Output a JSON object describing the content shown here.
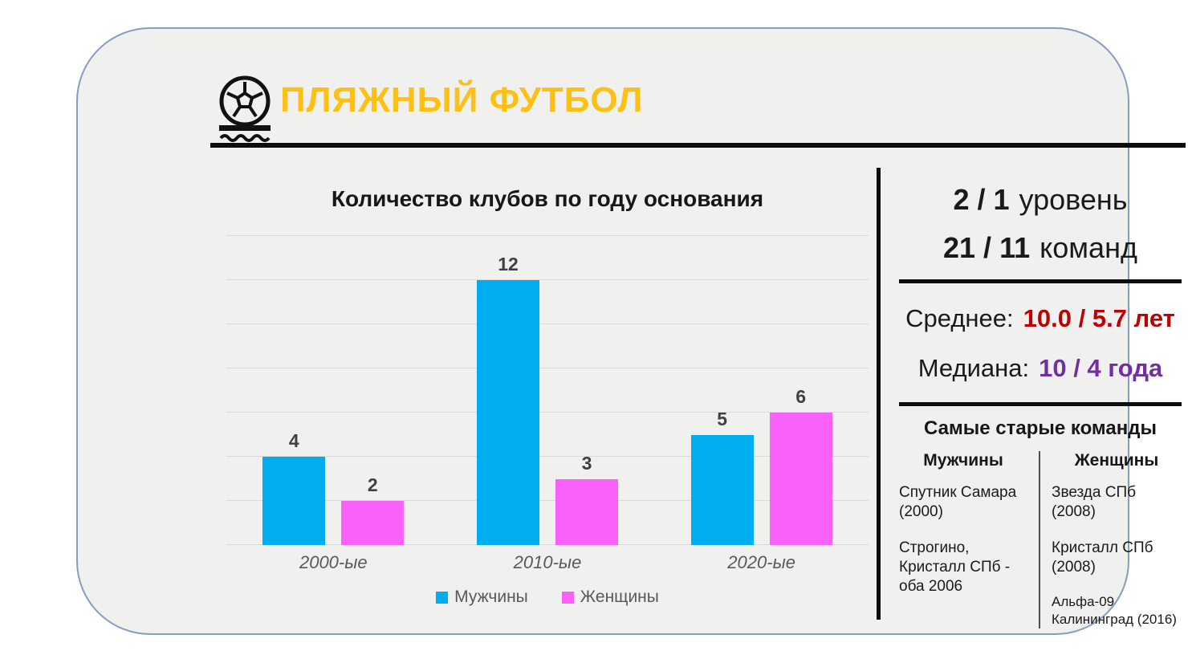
{
  "header": {
    "title": "ПЛЯЖНЫЙ ФУТБОЛ",
    "icon": "beach-soccer-ball-icon",
    "accent_color": "#FDC013"
  },
  "stats": {
    "levels": {
      "value": "2 / 1",
      "label": "уровень"
    },
    "teams": {
      "value": "21 / 11",
      "label": "команд"
    },
    "mean": {
      "label": "Среднее:",
      "value": "10.0 / 5.7 лет",
      "color": "#C00000"
    },
    "median": {
      "label": "Медиана:",
      "value": "10 / 4 года",
      "color": "#7030A0"
    }
  },
  "oldest_teams": {
    "title": "Самые старые команды",
    "columns": [
      {
        "header": "Мужчины",
        "entries": [
          "Спутник Самара (2000)",
          "Строгино, Кристалл СПб - оба 2006"
        ]
      },
      {
        "header": "Женщины",
        "entries": [
          "Звезда СПб (2008)",
          "Кристалл СПб (2008)",
          "Альфа-09 Калининград (2016)"
        ]
      }
    ]
  },
  "chart_data": {
    "type": "bar",
    "title": "Количество клубов по году основания",
    "categories": [
      "2000-ые",
      "2010-ые",
      "2020-ые"
    ],
    "series": [
      {
        "name": "Мужчины",
        "color": "#00AEEF",
        "values": [
          4,
          12,
          5
        ]
      },
      {
        "name": "Женщины",
        "color": "#F962F9",
        "values": [
          2,
          3,
          6
        ]
      }
    ],
    "ylim": [
      0,
      14
    ],
    "grid_step": 2,
    "grid": true,
    "legend_position": "bottom",
    "xlabel": "",
    "ylabel": ""
  }
}
